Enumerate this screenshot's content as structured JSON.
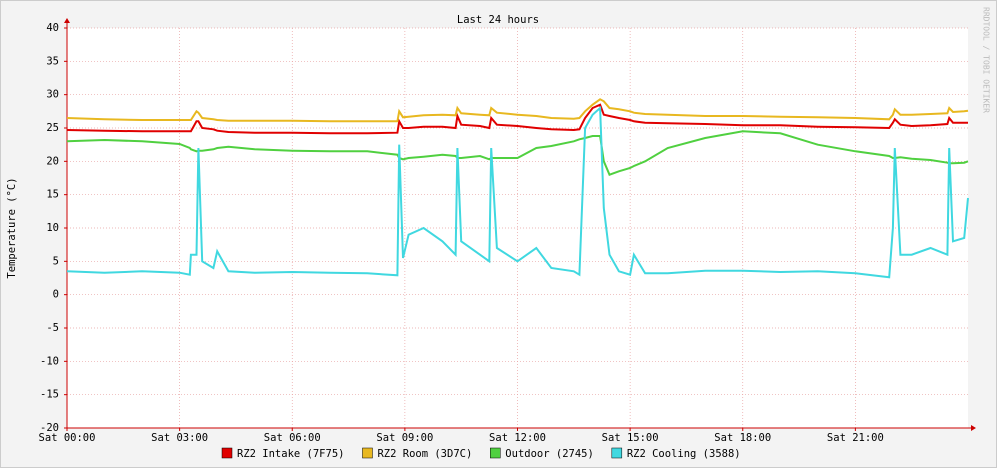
{
  "chart_data": {
    "type": "line",
    "title": "Last 24 hours",
    "y_label": "Temperature (°C)",
    "watermark": "RRDTOOL / TOBI OETIKER",
    "x": [
      0,
      1,
      2,
      3,
      3.27,
      3.3,
      3.45,
      3.5,
      3.6,
      3.9,
      4.0,
      4.3,
      5,
      6,
      7,
      8,
      8.8,
      8.85,
      8.95,
      9.1,
      9.5,
      10,
      10.35,
      10.4,
      10.5,
      11,
      11.25,
      11.3,
      11.45,
      12,
      12.5,
      12.9,
      13.5,
      13.65,
      13.8,
      14.0,
      14.2,
      14.3,
      14.45,
      14.7,
      15.0,
      15.1,
      15.4,
      16,
      17,
      18,
      19,
      20,
      21,
      21.9,
      22.0,
      22.05,
      22.2,
      22.5,
      23,
      23.45,
      23.5,
      23.6,
      23.9,
      24
    ],
    "xlim": [
      0,
      24
    ],
    "xticks": [
      {
        "value": 0,
        "label": "Sat 00:00"
      },
      {
        "value": 3,
        "label": "Sat 03:00"
      },
      {
        "value": 6,
        "label": "Sat 06:00"
      },
      {
        "value": 9,
        "label": "Sat 09:00"
      },
      {
        "value": 12,
        "label": "Sat 12:00"
      },
      {
        "value": 15,
        "label": "Sat 15:00"
      },
      {
        "value": 18,
        "label": "Sat 18:00"
      },
      {
        "value": 21,
        "label": "Sat 21:00"
      }
    ],
    "ylim": [
      -20,
      40
    ],
    "yticks": [
      -20,
      -15,
      -10,
      -5,
      0,
      5,
      10,
      15,
      20,
      25,
      30,
      35,
      40
    ],
    "grid": true,
    "series": [
      {
        "name": "RZ2 Intake (7F75)",
        "color": "#e00000",
        "values": [
          24.7,
          24.6,
          24.5,
          24.5,
          24.5,
          24.5,
          26,
          26,
          25,
          24.8,
          24.6,
          24.4,
          24.3,
          24.3,
          24.2,
          24.2,
          24.3,
          26,
          25,
          25,
          25.2,
          25.2,
          25,
          26.8,
          25.5,
          25.3,
          25,
          26.5,
          25.5,
          25.3,
          25,
          24.8,
          24.7,
          24.8,
          26.5,
          28,
          28.5,
          27,
          26.8,
          26.5,
          26.2,
          26,
          25.8,
          25.7,
          25.6,
          25.4,
          25.4,
          25.2,
          25.1,
          25,
          25.8,
          26.3,
          25.5,
          25.3,
          25.4,
          25.6,
          26.5,
          25.8,
          25.8,
          25.8
        ]
      },
      {
        "name": "RZ2 Room (3D7C)",
        "color": "#e8b820",
        "values": [
          26.5,
          26.3,
          26.2,
          26.2,
          26.2,
          26.2,
          27.5,
          27.3,
          26.5,
          26.3,
          26.2,
          26.1,
          26.1,
          26.1,
          26,
          26,
          26,
          27.5,
          26.6,
          26.7,
          26.9,
          27,
          26.9,
          28,
          27.2,
          27,
          26.9,
          28,
          27.3,
          27,
          26.8,
          26.5,
          26.4,
          26.5,
          27.5,
          28.5,
          29.3,
          29,
          28,
          27.8,
          27.5,
          27.3,
          27.1,
          27,
          26.8,
          26.8,
          26.7,
          26.6,
          26.5,
          26.3,
          27,
          27.8,
          27,
          27,
          27.1,
          27.2,
          28,
          27.4,
          27.5,
          27.6
        ]
      },
      {
        "name": "Outdoor (2745)",
        "color": "#50d040",
        "values": [
          23,
          23.2,
          23,
          22.6,
          22,
          21.8,
          21.5,
          21.6,
          21.6,
          21.8,
          22,
          22.2,
          21.8,
          21.6,
          21.5,
          21.5,
          21,
          20.5,
          20.3,
          20.5,
          20.7,
          21,
          20.8,
          20.5,
          20.5,
          20.8,
          20.3,
          20.5,
          20.5,
          20.5,
          22,
          22.3,
          23,
          23.3,
          23.5,
          23.8,
          23.8,
          20,
          18,
          18.5,
          19,
          19.3,
          20,
          22,
          23.5,
          24.5,
          24.2,
          22.5,
          21.5,
          20.8,
          20.5,
          20.5,
          20.6,
          20.4,
          20.2,
          19.8,
          19.7,
          19.7,
          19.8,
          20
        ]
      },
      {
        "name": "RZ2 Cooling (3588)",
        "color": "#40d8e0",
        "values": [
          3.5,
          3.3,
          3.5,
          3.3,
          3.0,
          6,
          6,
          22,
          5,
          4,
          6.5,
          3.5,
          3.3,
          3.4,
          3.3,
          3.2,
          2.9,
          22.5,
          5.5,
          9,
          10,
          8,
          6,
          22,
          8,
          6,
          5,
          22,
          7,
          5,
          7,
          4,
          3.5,
          3,
          25,
          27,
          28,
          13,
          6,
          3.5,
          3,
          6,
          3.2,
          3.2,
          3.6,
          3.6,
          3.4,
          3.5,
          3.2,
          2.6,
          10,
          22,
          6,
          6,
          7,
          6,
          22,
          8,
          8.5,
          14.5
        ]
      }
    ]
  }
}
